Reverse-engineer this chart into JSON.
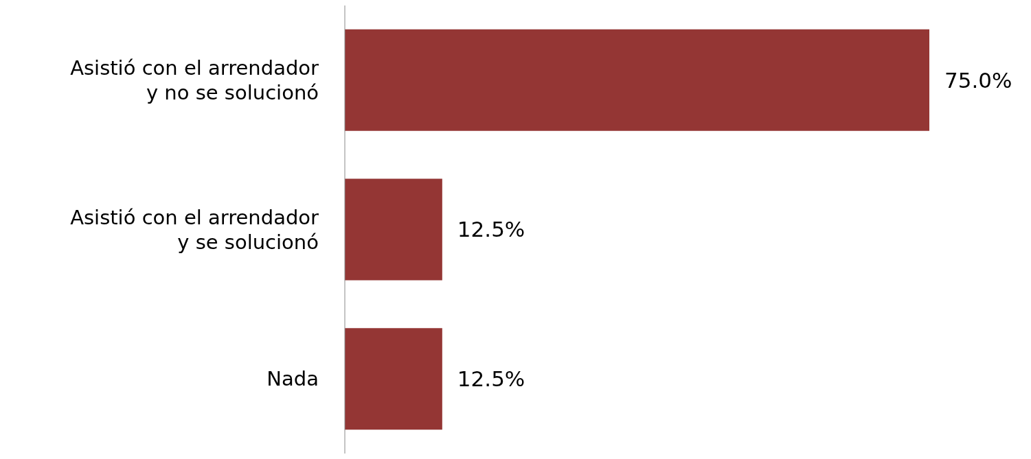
{
  "chart_data": {
    "type": "bar",
    "orientation": "horizontal",
    "categories": [
      "Asistió con el arrendador y no se solucionó",
      "Asistió con el arrendador y se solucionó",
      "Nada"
    ],
    "values": [
      75.0,
      12.5,
      12.5
    ],
    "value_labels": [
      "75.0%",
      "12.5%",
      "12.5%"
    ],
    "color": "#943634"
  }
}
